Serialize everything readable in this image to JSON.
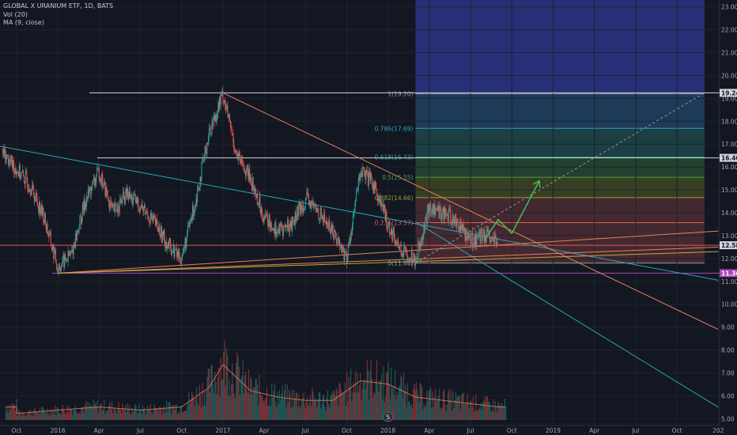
{
  "header": {
    "title": "GLOBAL X URANIUM ETF, 1D, BATS",
    "indicator_vol": "Vol (20)",
    "indicator_ma": "MA (9, close)"
  },
  "chart_data": {
    "type": "candlestick",
    "y_axis": {
      "ticks": [
        "5.00",
        "6.00",
        "7.00",
        "8.00",
        "9.00",
        "10.00",
        "11.00",
        "12.00",
        "13.00",
        "14.00",
        "15.00",
        "16.00",
        "17.00",
        "18.00",
        "19.00",
        "20.00",
        "21.00",
        "22.00",
        "23.00"
      ],
      "range": [
        4.7,
        23.3
      ],
      "price_labels": [
        {
          "value": 19.24,
          "text": "19.24",
          "color": "#d1d4dc",
          "text_color": "#131722"
        },
        {
          "value": 16.4,
          "text": "16.40",
          "color": "#d1d4dc",
          "text_color": "#131722"
        },
        {
          "value": 12.58,
          "text": "12.58",
          "color": "#d1d4dc",
          "text_color": "#131722"
        },
        {
          "value": 11.36,
          "text": "11.36",
          "color": "#ab47bc",
          "text_color": "#ffffff"
        }
      ]
    },
    "x_axis": {
      "ticks": [
        "Oct",
        "2016",
        "Apr",
        "Jul",
        "Oct",
        "2017",
        "Apr",
        "Jul",
        "Oct",
        "2018",
        "Apr",
        "Jul",
        "Oct",
        "2019",
        "Apr",
        "Jul",
        "Oct",
        "202"
      ],
      "range_months": [
        -4.2,
        48.1
      ]
    },
    "price_series_monthly": [
      {
        "date": "2015-09",
        "close": 16.6
      },
      {
        "date": "2015-11",
        "close": 15.2
      },
      {
        "date": "2015-12",
        "close": 13.8
      },
      {
        "date": "2016-01",
        "close": 11.6
      },
      {
        "date": "2016-02",
        "close": 12.2
      },
      {
        "date": "2016-03",
        "close": 14.5
      },
      {
        "date": "2016-04",
        "close": 15.8
      },
      {
        "date": "2016-05",
        "close": 14.0
      },
      {
        "date": "2016-06",
        "close": 14.8
      },
      {
        "date": "2016-07",
        "close": 14.3
      },
      {
        "date": "2016-08",
        "close": 13.6
      },
      {
        "date": "2016-09",
        "close": 12.6
      },
      {
        "date": "2016-10",
        "close": 12.0
      },
      {
        "date": "2016-11",
        "close": 14.5
      },
      {
        "date": "2016-12",
        "close": 17.5
      },
      {
        "date": "2017-01",
        "close": 19.2
      },
      {
        "date": "2017-02",
        "close": 16.5
      },
      {
        "date": "2017-03",
        "close": 15.5
      },
      {
        "date": "2017-04",
        "close": 13.8
      },
      {
        "date": "2017-05",
        "close": 13.2
      },
      {
        "date": "2017-06",
        "close": 13.5
      },
      {
        "date": "2017-07",
        "close": 14.6
      },
      {
        "date": "2017-08",
        "close": 14.0
      },
      {
        "date": "2017-09",
        "close": 13.2
      },
      {
        "date": "2017-10",
        "close": 12.0
      },
      {
        "date": "2017-11",
        "close": 15.8
      },
      {
        "date": "2017-12",
        "close": 15.2
      },
      {
        "date": "2018-01",
        "close": 13.5
      },
      {
        "date": "2018-02",
        "close": 12.3
      },
      {
        "date": "2018-03",
        "close": 12.0
      },
      {
        "date": "2018-04",
        "close": 14.2
      },
      {
        "date": "2018-05",
        "close": 14.0
      },
      {
        "date": "2018-06",
        "close": 13.6
      },
      {
        "date": "2018-07",
        "close": 12.8
      },
      {
        "date": "2018-08",
        "close": 13.0
      },
      {
        "date": "2018-09",
        "close": 12.58
      }
    ],
    "volume_series_monthly": [
      {
        "date": "2015-10",
        "volume_relative": 0.1
      },
      {
        "date": "2016-01",
        "volume_relative": 0.15
      },
      {
        "date": "2016-04",
        "volume_relative": 0.2
      },
      {
        "date": "2016-07",
        "volume_relative": 0.15
      },
      {
        "date": "2016-10",
        "volume_relative": 0.2
      },
      {
        "date": "2016-12",
        "volume_relative": 0.5
      },
      {
        "date": "2017-01",
        "volume_relative": 0.85
      },
      {
        "date": "2017-02",
        "volume_relative": 0.65
      },
      {
        "date": "2017-03",
        "volume_relative": 0.45
      },
      {
        "date": "2017-05",
        "volume_relative": 0.35
      },
      {
        "date": "2017-07",
        "volume_relative": 0.3
      },
      {
        "date": "2017-09",
        "volume_relative": 0.3
      },
      {
        "date": "2017-11",
        "volume_relative": 0.6
      },
      {
        "date": "2018-01",
        "volume_relative": 0.55
      },
      {
        "date": "2018-03",
        "volume_relative": 0.35
      },
      {
        "date": "2018-05",
        "volume_relative": 0.3
      },
      {
        "date": "2018-07",
        "volume_relative": 0.25
      },
      {
        "date": "2018-09",
        "volume_relative": 0.2
      }
    ],
    "volume_badge": "S",
    "fibonacci": {
      "start_date": "2018-03",
      "end_date": "2019-12",
      "levels": [
        {
          "ratio": "1",
          "price": 19.2,
          "label": "1(19.20)",
          "fill": "#3e3f46",
          "line": "#9598a1"
        },
        {
          "ratio": "0.786",
          "price": 17.69,
          "label": "0.786(17.69)",
          "fill": "#1f3f5f",
          "line": "#2aa6c6"
        },
        {
          "ratio": "0.618",
          "price": 16.43,
          "label": "0.618(16.43)",
          "fill": "#1d4447",
          "line": "#2aa698"
        },
        {
          "ratio": "0.5",
          "price": 15.55,
          "label": "0.5(15.55)",
          "fill": "#234530",
          "line": "#43a047"
        },
        {
          "ratio": "0.382",
          "price": 14.66,
          "label": "0.382(14.66)",
          "fill": "#3d4322",
          "line": "#8fa03a"
        },
        {
          "ratio": "0.236",
          "price": 13.57,
          "label": "0.236(13.57)",
          "fill": "#4a2a32",
          "line": "#e35a52"
        },
        {
          "ratio": "0",
          "price": 11.8,
          "label": "0(11.80)",
          "fill": "#4a2a32",
          "line": "#9598a1"
        }
      ],
      "extension_fill": "#2b3585",
      "extension_top": 23.3
    },
    "horizontal_lines": [
      {
        "price": 19.24,
        "color": "#d1d4dc"
      },
      {
        "price": 16.4,
        "color": "#d1d4dc"
      },
      {
        "price": 12.58,
        "color": "#e35a52"
      },
      {
        "price": 11.36,
        "color": "#ab47bc"
      }
    ],
    "trendlines": [
      {
        "color": "#2aa6b8",
        "points": [
          {
            "date": "2015-08",
            "price": 17.0
          },
          {
            "date": "2020-01",
            "price": 11.05
          }
        ]
      },
      {
        "color": "#2aa6b8",
        "points": [
          {
            "date": "2018-03",
            "price": 13.6
          },
          {
            "date": "2020-01",
            "price": 5.5
          }
        ]
      },
      {
        "color": "#e0855a",
        "points": [
          {
            "date": "2017-01",
            "price": 19.24
          },
          {
            "date": "2020-01",
            "price": 8.9
          }
        ]
      },
      {
        "color": "#e0855a",
        "points": [
          {
            "date": "2016-01",
            "price": 11.36
          },
          {
            "date": "2020-01",
            "price": 13.2
          }
        ]
      },
      {
        "color": "#e0855a",
        "points": [
          {
            "date": "2016-01",
            "price": 11.36
          },
          {
            "date": "2020-01",
            "price": 12.5
          }
        ]
      },
      {
        "color": "#c8a840",
        "points": [
          {
            "date": "2016-01",
            "price": 11.36
          },
          {
            "date": "2020-01",
            "price": 12.3
          }
        ]
      }
    ],
    "dashed_projection": {
      "color": "#9598a1",
      "points": [
        {
          "date": "2018-03",
          "price": 11.8
        },
        {
          "date": "2019-12",
          "price": 19.24
        }
      ]
    },
    "forecast_arrow": {
      "color": "#3fbf5a",
      "points": [
        {
          "date": "2018-08",
          "price": 12.8
        },
        {
          "date": "2018-09",
          "price": 13.7
        },
        {
          "date": "2018-10",
          "price": 13.1
        },
        {
          "date": "2018-12",
          "price": 15.4
        }
      ]
    }
  }
}
